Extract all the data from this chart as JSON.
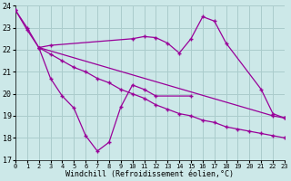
{
  "background_color": "#cce8e8",
  "line_color": "#990099",
  "grid_color": "#aacccc",
  "xlabel": "Windchill (Refroidissement éolien,°C)",
  "xlim": [
    0,
    23
  ],
  "ylim": [
    17,
    24
  ],
  "yticks": [
    17,
    18,
    19,
    20,
    21,
    22,
    23,
    24
  ],
  "xticks": [
    0,
    1,
    2,
    3,
    4,
    5,
    6,
    7,
    8,
    9,
    10,
    11,
    12,
    13,
    14,
    15,
    16,
    17,
    18,
    19,
    20,
    21,
    22,
    23
  ],
  "line1_x": [
    0,
    1,
    2,
    22,
    23
  ],
  "line1_y": [
    23.8,
    23.0,
    22.1,
    19.0,
    18.9
  ],
  "line2_x": [
    0,
    1,
    2,
    3,
    4,
    5,
    6,
    7,
    8,
    9,
    10,
    11,
    12,
    13,
    14,
    15,
    16,
    17,
    18,
    19,
    20,
    21,
    22,
    23
  ],
  "line2_y": [
    23.8,
    22.9,
    22.1,
    21.8,
    21.5,
    21.2,
    21.0,
    20.7,
    20.5,
    20.2,
    20.0,
    19.8,
    19.5,
    19.3,
    19.1,
    19.0,
    18.8,
    18.7,
    18.5,
    18.4,
    18.3,
    18.2,
    18.1,
    18.0
  ],
  "line3_x": [
    2,
    3,
    10,
    11,
    12,
    13,
    14,
    15,
    16,
    17,
    18,
    21,
    22,
    23
  ],
  "line3_y": [
    22.1,
    22.2,
    22.5,
    22.6,
    22.55,
    22.3,
    21.85,
    22.5,
    23.5,
    23.3,
    22.3,
    20.2,
    19.1,
    18.9
  ],
  "line4_x": [
    2,
    3,
    4,
    5,
    6,
    7,
    8,
    9,
    10,
    11,
    12,
    15
  ],
  "line4_y": [
    22.1,
    20.7,
    19.9,
    19.35,
    18.1,
    17.4,
    17.8,
    19.4,
    20.4,
    20.2,
    19.9,
    19.9
  ]
}
